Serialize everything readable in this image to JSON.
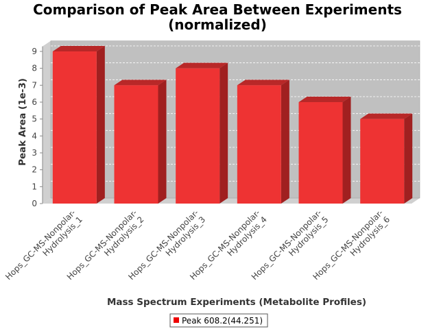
{
  "chart_data": {
    "type": "bar",
    "title": "Comparison of Peak Area Between Experiments",
    "subtitle": "(normalized)",
    "xlabel": "Mass Spectrum Experiments (Metabolite Profiles)",
    "ylabel": "Peak Area (1e-3)",
    "ylim": [
      0,
      9.3
    ],
    "yticks": [
      0,
      1,
      2,
      3,
      4,
      5,
      6,
      7,
      8,
      9
    ],
    "categories": [
      [
        "Hops_GC-MS-Nonpolar-",
        "Hydrolysis_1"
      ],
      [
        "Hops_GC-MS-Nonpolar-",
        "Hydrolysis_2"
      ],
      [
        "Hops_GC-MS-Nonpolar-",
        "Hydrolysis_3"
      ],
      [
        "Hops_GC-MS-Nonpolar-",
        "Hydrolysis_4"
      ],
      [
        "Hops_GC-MS-Nonpolar-",
        "Hydrolysis_5"
      ],
      [
        "Hops_GC-MS-Nonpolar-",
        "Hydrolysis_6"
      ]
    ],
    "series": [
      {
        "name": "Peak 608.2(44.251)",
        "values": [
          9,
          7,
          8,
          7,
          6,
          5
        ],
        "color": "#ee3333"
      }
    ],
    "grid": true,
    "legend_position": "bottom",
    "style": "3d"
  }
}
